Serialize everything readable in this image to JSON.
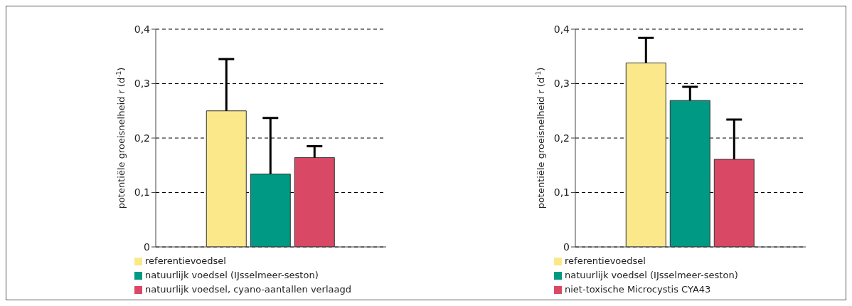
{
  "chart_data": [
    {
      "type": "bar",
      "categories": [
        null
      ],
      "ylabel": "potentiële groeisnelheid r (d$^{-1}$)",
      "ylim": [
        0,
        0.4
      ],
      "yticks": [
        {
          "value": 0,
          "label": "0"
        },
        {
          "value": 0.1,
          "label": "0,1"
        },
        {
          "value": 0.2,
          "label": "0,2"
        },
        {
          "value": 0.3,
          "label": "0,3"
        },
        {
          "value": 0.4,
          "label": "0,4"
        }
      ],
      "grid": "y",
      "legend": "bottom",
      "series": [
        {
          "name": "referentievoedsel",
          "color": "#fae88a",
          "values": [
            0.25
          ],
          "errors": [
            [
              0.25,
              0.345
            ]
          ]
        },
        {
          "name": "natuurlijk voedsel (IJsselmeer-seston)",
          "color": "#009983",
          "values": [
            0.134
          ],
          "errors": [
            [
              0.134,
              0.237
            ]
          ]
        },
        {
          "name": "natuurlijk voedsel, cyano-aantallen verlaagd",
          "color": "#d94865",
          "values": [
            0.164
          ],
          "errors": [
            [
              0.164,
              0.185
            ]
          ]
        }
      ]
    },
    {
      "type": "bar",
      "categories": [
        null
      ],
      "ylabel": "potentiële groeisnelheid r (d$^{-1}$)",
      "ylim": [
        0,
        0.4
      ],
      "yticks": [
        {
          "value": 0,
          "label": "0"
        },
        {
          "value": 0.1,
          "label": "0,1"
        },
        {
          "value": 0.2,
          "label": "0,2"
        },
        {
          "value": 0.3,
          "label": "0,3"
        },
        {
          "value": 0.4,
          "label": "0,4"
        }
      ],
      "grid": "y",
      "legend": "bottom",
      "series": [
        {
          "name": "referentievoedsel",
          "color": "#fae88a",
          "values": [
            0.338
          ],
          "errors": [
            [
              0.338,
              0.384
            ]
          ]
        },
        {
          "name": "natuurlijk voedsel (IJsselmeer-seston)",
          "color": "#009983",
          "values": [
            0.269
          ],
          "errors": [
            [
              0.269,
              0.294
            ]
          ]
        },
        {
          "name": "niet-toxische Microcystis CYA43",
          "color": "#d94865",
          "values": [
            0.161
          ],
          "errors": [
            [
              0.161,
              0.234
            ]
          ]
        }
      ]
    }
  ]
}
